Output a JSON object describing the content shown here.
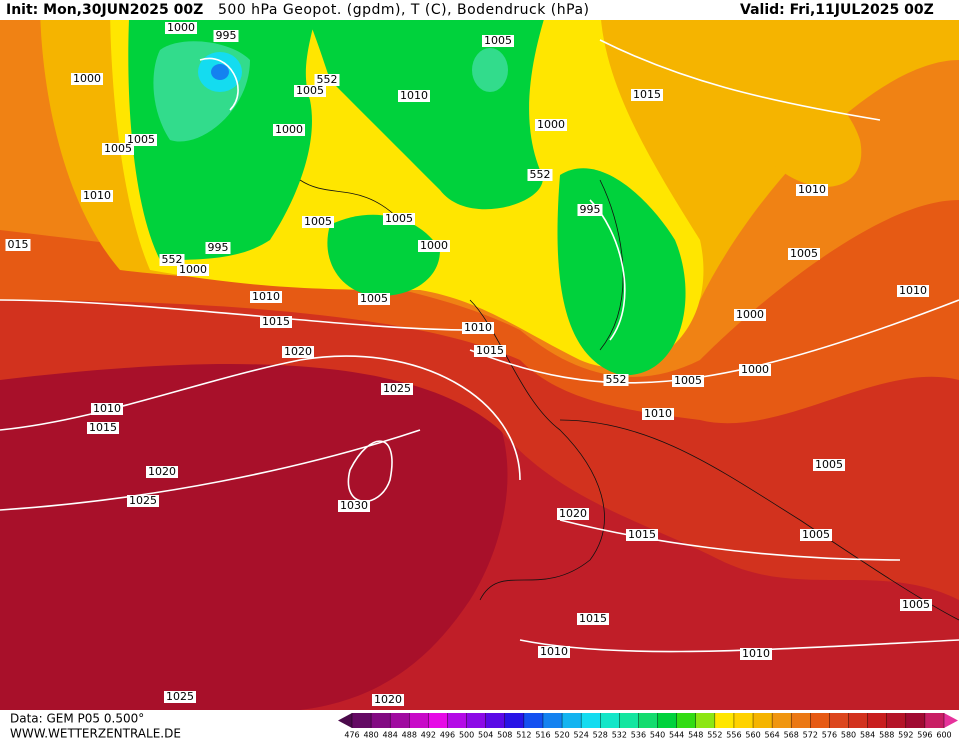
{
  "header": {
    "init": "Init: Mon,30JUN2025 00Z",
    "title": "500 hPa Geopot. (gpdm), T (C), Bodendruck (hPa)",
    "valid": "Valid: Fri,11JUL2025 00Z"
  },
  "map": {
    "isobar_labels": [
      "1000",
      "995",
      "1005",
      "552",
      "1005",
      "1010",
      "1015",
      "1000",
      "1005",
      "1005",
      "1000",
      "1000",
      "552",
      "1010",
      "1010",
      "995",
      "1005",
      "1005",
      "1000",
      "015",
      "995",
      "552",
      "1000",
      "1005",
      "1010",
      "1005",
      "1010",
      "1000",
      "1015",
      "1010",
      "1015",
      "1020",
      "1000",
      "552",
      "1005",
      "1025",
      "1010",
      "1010",
      "1015",
      "1020",
      "1005",
      "1025",
      "1030",
      "1020",
      "1015",
      "1005",
      "1005",
      "1015",
      "1010",
      "1010",
      "1025",
      "1020"
    ]
  },
  "colorbar": {
    "labels": [
      476,
      480,
      484,
      488,
      492,
      496,
      500,
      504,
      508,
      512,
      516,
      520,
      524,
      528,
      532,
      536,
      540,
      544,
      548,
      552,
      556,
      560,
      564,
      568,
      572,
      576,
      580,
      584,
      588,
      592,
      596,
      600
    ],
    "colors": [
      "#4b0a4b",
      "#640a64",
      "#820a82",
      "#a00aa0",
      "#c80ac8",
      "#e60ae6",
      "#b40ae6",
      "#8c0ae6",
      "#5a0ae6",
      "#2814e6",
      "#1450f0",
      "#1482f0",
      "#14b4f0",
      "#14dcf0",
      "#14e6c8",
      "#14e6a0",
      "#14dc6e",
      "#00d23c",
      "#32dc14",
      "#8ce614",
      "#ffe600",
      "#ffd200",
      "#f5b400",
      "#f09610",
      "#eb7814",
      "#e65a14",
      "#dc461e",
      "#d2321e",
      "#c81e1e",
      "#b41428",
      "#a00a32",
      "#c81e64",
      "#e6329b"
    ]
  },
  "footer": {
    "source": "Data: GEM P05 0.500°",
    "site": "WWW.WETTERZENTRALE.DE"
  }
}
